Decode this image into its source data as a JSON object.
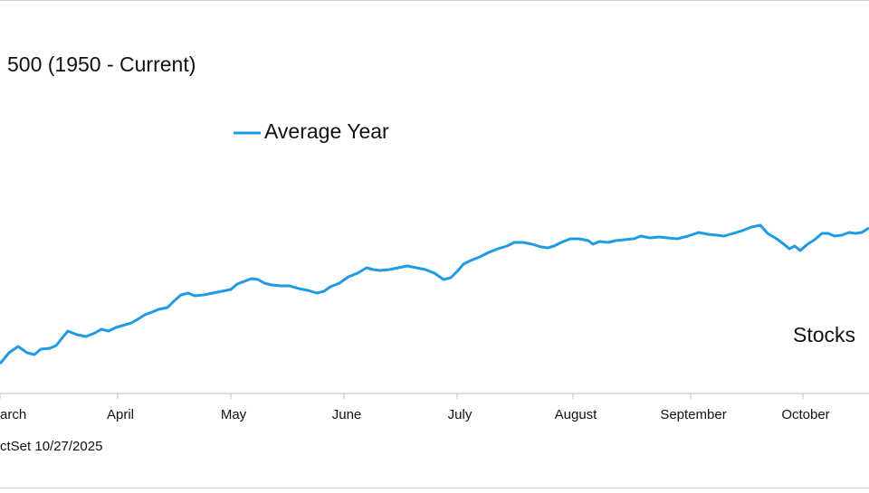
{
  "chart_data": {
    "type": "line",
    "title": "500 (1950 - Current)",
    "annotation": "Stocks",
    "source": "ctSet 10/27/2025",
    "legend": "top",
    "xlim": [
      0,
      960
    ],
    "xticks": [
      {
        "value": 0,
        "label": "arch"
      },
      {
        "value": 130,
        "label": "April"
      },
      {
        "value": 255,
        "label": "May"
      },
      {
        "value": 380,
        "label": "June"
      },
      {
        "value": 505,
        "label": "July"
      },
      {
        "value": 633,
        "label": "August"
      },
      {
        "value": 763,
        "label": "September"
      },
      {
        "value": 887,
        "label": "October"
      }
    ],
    "ylim": [
      0,
      22
    ],
    "grid": false,
    "x": [
      0,
      10,
      20,
      30,
      38,
      45,
      55,
      62,
      70,
      75,
      85,
      95,
      105,
      112,
      120,
      128,
      135,
      145,
      152,
      160,
      168,
      175,
      185,
      192,
      200,
      208,
      215,
      225,
      235,
      245,
      255,
      262,
      270,
      278,
      285,
      292,
      300,
      310,
      320,
      330,
      340,
      350,
      358,
      365,
      375,
      385,
      395,
      405,
      412,
      420,
      430,
      440,
      450,
      460,
      470,
      480,
      490,
      498,
      505,
      512,
      520,
      530,
      540,
      550,
      560,
      568,
      578,
      588,
      598,
      605,
      612,
      620,
      630,
      640,
      650,
      655,
      662,
      672,
      680,
      690,
      700,
      708,
      718,
      728,
      738,
      748,
      760,
      772,
      782,
      792,
      800,
      810,
      820,
      830,
      840,
      848,
      858,
      866,
      872,
      878,
      884,
      892,
      900,
      908,
      915,
      922,
      930,
      938,
      945,
      952,
      960
    ],
    "series": [
      {
        "name": "Average Year",
        "color": "#1f9be6",
        "values": [
          1.9,
          2.5,
          2.85,
          2.5,
          2.4,
          2.7,
          2.75,
          2.9,
          3.4,
          3.7,
          3.5,
          3.4,
          3.6,
          3.8,
          3.7,
          3.9,
          4.0,
          4.15,
          4.35,
          4.6,
          4.75,
          4.9,
          5.0,
          5.35,
          5.7,
          5.8,
          5.65,
          5.7,
          5.8,
          5.9,
          6.0,
          6.3,
          6.45,
          6.6,
          6.55,
          6.35,
          6.25,
          6.2,
          6.2,
          6.05,
          5.95,
          5.8,
          5.9,
          6.15,
          6.35,
          6.7,
          6.9,
          7.2,
          7.1,
          7.05,
          7.1,
          7.2,
          7.3,
          7.2,
          7.1,
          6.9,
          6.55,
          6.65,
          7.0,
          7.4,
          7.6,
          7.8,
          8.05,
          8.25,
          8.4,
          8.6,
          8.6,
          8.5,
          8.35,
          8.3,
          8.4,
          8.6,
          8.8,
          8.8,
          8.7,
          8.5,
          8.65,
          8.6,
          8.7,
          8.75,
          8.8,
          8.95,
          8.85,
          8.9,
          8.85,
          8.8,
          8.95,
          9.15,
          9.05,
          9.0,
          8.95,
          9.1,
          9.25,
          9.45,
          9.55,
          9.1,
          8.8,
          8.5,
          8.25,
          8.4,
          8.15,
          8.5,
          8.75,
          9.1,
          9.1,
          8.95,
          9.0,
          9.15,
          9.1,
          9.15,
          9.4
        ]
      }
    ]
  }
}
